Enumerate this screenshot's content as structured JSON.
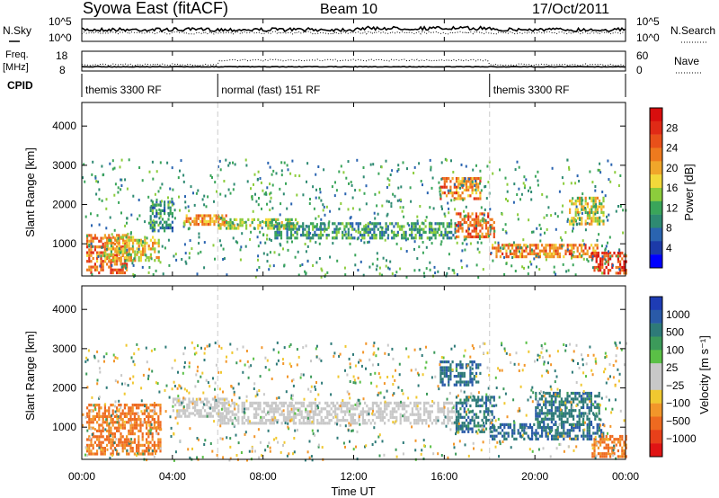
{
  "header": {
    "title": "Syowa East (fitACF)",
    "beam": "Beam 10",
    "date": "17/Oct/2011"
  },
  "noise_panel": {
    "left_label": "N.Sky",
    "right_label": "N.Search",
    "left_ticks": [
      "10^5",
      "10^0"
    ],
    "right_ticks": [
      "10^5",
      "10^0"
    ]
  },
  "freq_panel": {
    "left_label": "Freq.",
    "left_unit": "[MHz]",
    "left_ticks": [
      "18",
      "8"
    ],
    "right_label": "Nave",
    "right_ticks": [
      "60",
      "0"
    ]
  },
  "cpid": {
    "label": "CPID",
    "segments": [
      {
        "name": "themis 3300 RF",
        "start_hour": 0,
        "end_hour": 6
      },
      {
        "name": "normal (fast) 151 RF",
        "start_hour": 6,
        "end_hour": 18
      },
      {
        "name": "themis 3300 RF",
        "start_hour": 18,
        "end_hour": 24
      }
    ]
  },
  "x_axis": {
    "label": "Time UT",
    "ticks": [
      "00:00",
      "04:00",
      "08:00",
      "12:00",
      "16:00",
      "20:00",
      "00:00"
    ]
  },
  "chart_data": [
    {
      "type": "heatmap",
      "name": "power",
      "ylabel": "Slant Range [km]",
      "yticks": [
        "1000",
        "2000",
        "3000",
        "4000"
      ],
      "ylim": [
        180,
        4600
      ],
      "xlim_hours": [
        0,
        24
      ],
      "colorbar": {
        "label": "Power [dB]",
        "ticks": [
          "4",
          "8",
          "12",
          "16",
          "20",
          "24",
          "28"
        ],
        "colors": [
          "#0000ff",
          "#1c3aa8",
          "#2a64b0",
          "#2e8a72",
          "#3aa55a",
          "#8ccc3c",
          "#f2d93a",
          "#f0a62a",
          "#ee7a1e",
          "#e8501a",
          "#e02a16",
          "#d80e0e"
        ]
      },
      "regions": [
        {
          "t": [
            0.2,
            2.0
          ],
          "r": [
            250,
            1250
          ],
          "v": 22
        },
        {
          "t": [
            1.0,
            3.4
          ],
          "r": [
            600,
            1200
          ],
          "v": 17
        },
        {
          "t": [
            3.0,
            4.0
          ],
          "r": [
            1300,
            2100
          ],
          "v": 9
        },
        {
          "t": [
            4.5,
            6.4
          ],
          "r": [
            1500,
            1750
          ],
          "v": 20
        },
        {
          "t": [
            6.0,
            9.5
          ],
          "r": [
            1400,
            1650
          ],
          "v": 15
        },
        {
          "t": [
            8.5,
            16.5
          ],
          "r": [
            1150,
            1550
          ],
          "v": 10
        },
        {
          "t": [
            15.8,
            17.6
          ],
          "r": [
            2150,
            2700
          ],
          "v": 21
        },
        {
          "t": [
            16.5,
            18.2
          ],
          "r": [
            1200,
            1800
          ],
          "v": 23
        },
        {
          "t": [
            18.0,
            22.8
          ],
          "r": [
            700,
            1000
          ],
          "v": 21
        },
        {
          "t": [
            21.5,
            23.0
          ],
          "r": [
            1500,
            2200
          ],
          "v": 16
        },
        {
          "t": [
            22.5,
            24.0
          ],
          "r": [
            250,
            800
          ],
          "v": 25
        }
      ]
    },
    {
      "type": "heatmap",
      "name": "velocity",
      "ylabel": "Slant Range [km]",
      "yticks": [
        "1000",
        "2000",
        "3000",
        "4000"
      ],
      "ylim": [
        180,
        4600
      ],
      "xlim_hours": [
        0,
        24
      ],
      "colorbar": {
        "label": "Velocity [m s⁻¹]",
        "ticks": [
          "1000",
          "500",
          "100",
          "25",
          "−25",
          "−100",
          "−500",
          "−1000"
        ],
        "colors": [
          "#1e3cb4",
          "#2a5aa8",
          "#2e7a78",
          "#3c9a5a",
          "#5ac046",
          "#c8c8c8",
          "#c8c8c8",
          "#f0c830",
          "#f2962a",
          "#ee6a20",
          "#e8401a",
          "#e01414"
        ]
      },
      "regions": [
        {
          "t": [
            0.2,
            3.5
          ],
          "r": [
            300,
            1600
          ],
          "v": -300
        },
        {
          "t": [
            4.0,
            6.5
          ],
          "r": [
            1300,
            1750
          ],
          "v": 0
        },
        {
          "t": [
            6.0,
            16.5
          ],
          "r": [
            1100,
            1650
          ],
          "v": 0
        },
        {
          "t": [
            15.8,
            17.6
          ],
          "r": [
            2100,
            2700
          ],
          "v": 250
        },
        {
          "t": [
            16.5,
            18.2
          ],
          "r": [
            900,
            1800
          ],
          "v": 200
        },
        {
          "t": [
            18.0,
            23.0
          ],
          "r": [
            700,
            1100
          ],
          "v": 250
        },
        {
          "t": [
            20.0,
            22.8
          ],
          "r": [
            1100,
            1900
          ],
          "v": 200
        },
        {
          "t": [
            22.5,
            24.0
          ],
          "r": [
            250,
            800
          ],
          "v": -300
        }
      ]
    }
  ]
}
